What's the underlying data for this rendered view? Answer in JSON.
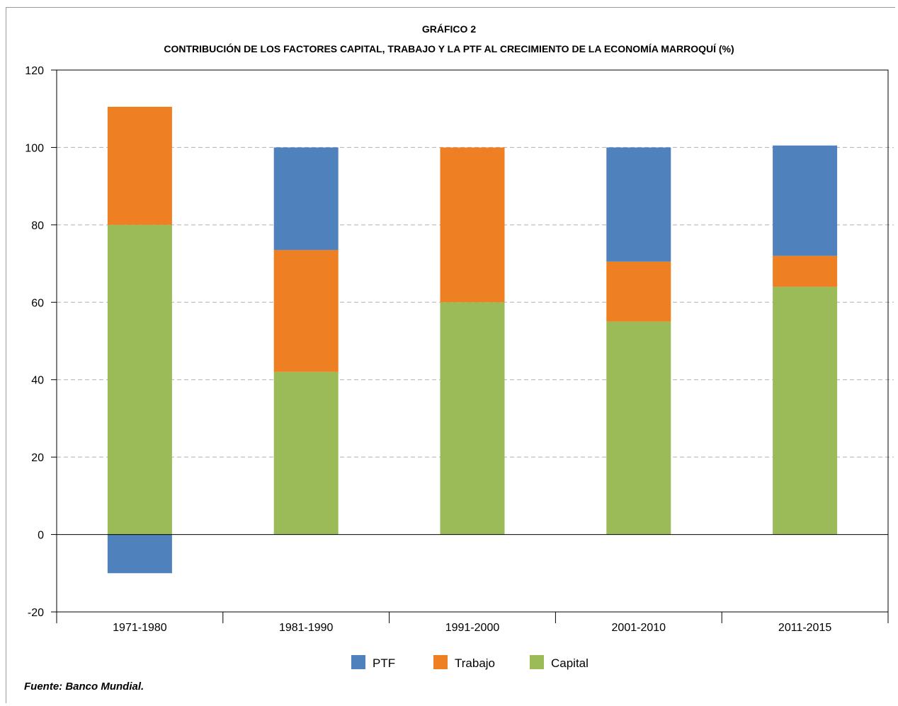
{
  "chart_data": {
    "type": "bar",
    "stacked": true,
    "title": "GRÁFICO 2",
    "subtitle": "CONTRIBUCIÓN DE LOS FACTORES CAPITAL, TRABAJO Y LA PTF AL CRECIMIENTO DE LA ECONOMÍA MARROQUÍ (%)",
    "categories": [
      "1971-1980",
      "1981-1990",
      "1991-2000",
      "2001-2010",
      "2011-2015"
    ],
    "series": [
      {
        "name": "Capital",
        "color": "#9bbb59",
        "values": [
          80,
          42,
          60,
          55,
          64
        ]
      },
      {
        "name": "Trabajo",
        "color": "#ee7f22",
        "values": [
          30.5,
          31.5,
          40,
          15.5,
          8
        ]
      },
      {
        "name": "PTF",
        "color": "#4f81bd",
        "values": [
          -10,
          26.5,
          0,
          29.5,
          28.5
        ]
      }
    ],
    "legend_order": [
      "PTF",
      "Trabajo",
      "Capital"
    ],
    "legend_position": "bottom",
    "ylim": [
      -20,
      120
    ],
    "yticks": [
      -20,
      0,
      20,
      40,
      60,
      80,
      100,
      120
    ],
    "grid": "horizontal dashed",
    "xlabel": "",
    "ylabel": ""
  },
  "source": "Fuente: Banco Mundial."
}
